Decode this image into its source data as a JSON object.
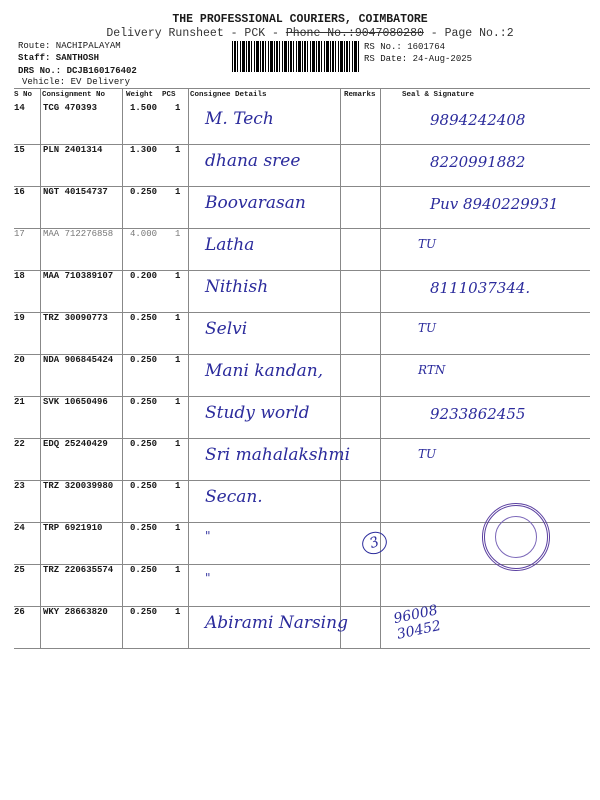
{
  "header": {
    "title": "THE PROFESSIONAL COURIERS, COIMBATORE",
    "subtitle_prefix": "Delivery Runsheet - PCK - ",
    "phone_label": "Phone No.:",
    "phone": "9047080280",
    "page_label": " - Page No.:2",
    "route": "Route: NACHIPALAYAM",
    "staff": "Staff: SANTHOSH",
    "drs": "DRS No.: DCJB160176402",
    "vehicle": "Vehicle: EV Delivery",
    "rs_no": "RS No.: 1601764",
    "rs_date": "RS Date: 24-Aug-2025"
  },
  "columns": {
    "sno": "S No",
    "consignment": "Consignment No",
    "weight": "Weight",
    "pcs": "PCS",
    "consignee": "Consignee Details",
    "remarks": "Remarks",
    "seal": "Seal & Signature"
  },
  "rows": [
    {
      "sno": "14",
      "consignment": "TCG 470393",
      "weight": "1.500",
      "pcs": "1",
      "consignee": "M. Tech",
      "signature": "9894242408"
    },
    {
      "sno": "15",
      "consignment": "PLN 2401314",
      "weight": "1.300",
      "pcs": "1",
      "consignee": "dhana sree",
      "signature": "8220991882"
    },
    {
      "sno": "16",
      "consignment": "NGT 40154737",
      "weight": "0.250",
      "pcs": "1",
      "consignee": "Boovarasan",
      "signature": "Puv 8940229931"
    },
    {
      "sno": "17",
      "consignment": "MAA 712276858",
      "weight": "4.000",
      "pcs": "1",
      "consignee": "Latha",
      "signature": "TU"
    },
    {
      "sno": "18",
      "consignment": "MAA 710389107",
      "weight": "0.200",
      "pcs": "1",
      "consignee": "Nithish",
      "signature": "8111037344."
    },
    {
      "sno": "19",
      "consignment": "TRZ 30090773",
      "weight": "0.250",
      "pcs": "1",
      "consignee": "Selvi",
      "signature": "TU"
    },
    {
      "sno": "20",
      "consignment": "NDA 906845424",
      "weight": "0.250",
      "pcs": "1",
      "consignee": "Mani kandan,",
      "signature": "RTN"
    },
    {
      "sno": "21",
      "consignment": "SVK 10650496",
      "weight": "0.250",
      "pcs": "1",
      "consignee": "Study world",
      "signature": "9233862455"
    },
    {
      "sno": "22",
      "consignment": "EDQ 25240429",
      "weight": "0.250",
      "pcs": "1",
      "consignee": "Sri mahalakshmi",
      "signature": "TU"
    },
    {
      "sno": "23",
      "consignment": "TRZ 320039980",
      "weight": "0.250",
      "pcs": "1",
      "consignee": "Secan.",
      "signature": ""
    },
    {
      "sno": "24",
      "consignment": "TRP 6921910",
      "weight": "0.250",
      "pcs": "1",
      "consignee": "\"",
      "signature": ""
    },
    {
      "sno": "25",
      "consignment": "TRZ 220635574",
      "weight": "0.250",
      "pcs": "1",
      "consignee": "\"",
      "signature": ""
    },
    {
      "sno": "26",
      "consignment": "WKY 28663820",
      "weight": "0.250",
      "pcs": "1",
      "consignee": "Abirami Narsing",
      "signature": ""
    }
  ],
  "annotations": {
    "bracket_note": "3",
    "phone_written": "96008 30452"
  },
  "colors": {
    "ink": "#2b2b9c",
    "print": "#1a1a1a",
    "stamp": "#5a3fa0"
  }
}
